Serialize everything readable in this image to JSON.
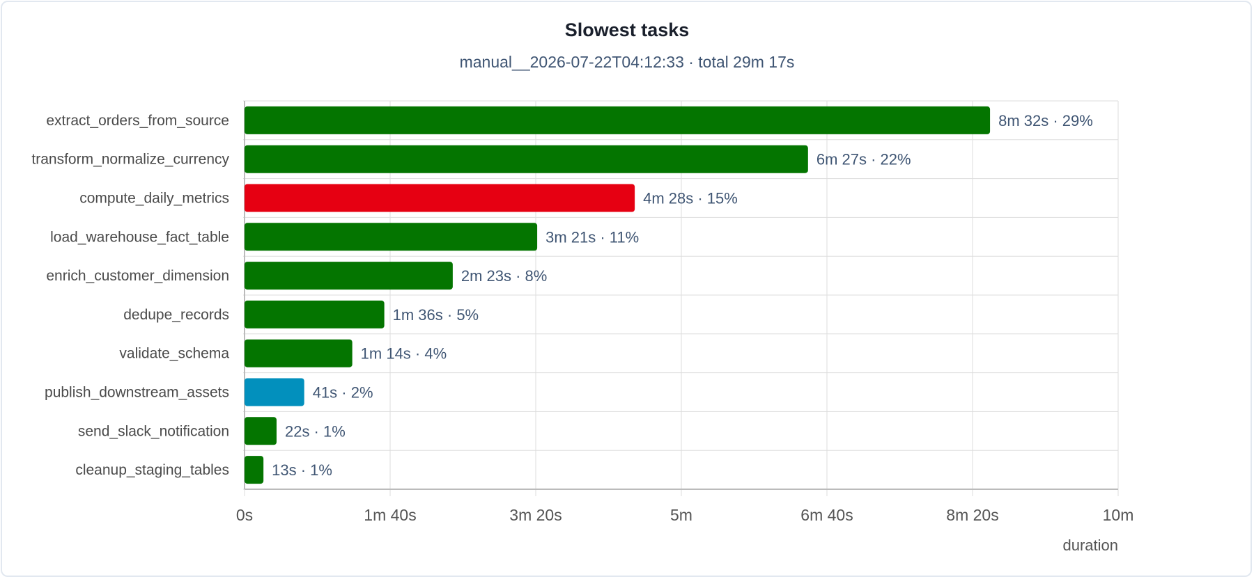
{
  "header": {
    "title": "Slowest tasks",
    "subtitle": "manual__2026-07-22T04:12:33 · total 29m 17s"
  },
  "colors": {
    "success": "#047500",
    "failed": "#e60012",
    "running": "#0290bd",
    "grid": "#dddddd",
    "axis": "#bbbbbb"
  },
  "chart_data": {
    "type": "bar",
    "orientation": "horizontal",
    "title": "Slowest tasks",
    "subtitle": "manual__2026-07-22T04:12:33 · total 29m 17s",
    "xlabel": "duration",
    "ylabel": "",
    "xlim": [
      0,
      600
    ],
    "x_unit": "seconds",
    "x_ticks": [
      {
        "value": 0,
        "label": "0s"
      },
      {
        "value": 100,
        "label": "1m 40s"
      },
      {
        "value": 200,
        "label": "3m 20s"
      },
      {
        "value": 300,
        "label": "5m"
      },
      {
        "value": 400,
        "label": "6m 40s"
      },
      {
        "value": 500,
        "label": "8m 20s"
      },
      {
        "value": 600,
        "label": "10m"
      }
    ],
    "grid": true,
    "legend": "none",
    "categories": [
      "extract_orders_from_source",
      "transform_normalize_currency",
      "compute_daily_metrics",
      "load_warehouse_fact_table",
      "enrich_customer_dimension",
      "dedupe_records",
      "validate_schema",
      "publish_downstream_assets",
      "send_slack_notification",
      "cleanup_staging_tables"
    ],
    "values": [
      512,
      387,
      268,
      201,
      143,
      96,
      74,
      41,
      22,
      13
    ],
    "labels": [
      "8m 32s · 29%",
      "6m 27s · 22%",
      "4m 28s · 15%",
      "3m 21s · 11%",
      "2m 23s · 8%",
      "1m 36s · 5%",
      "1m 14s · 4%",
      "41s · 2%",
      "22s · 1%",
      "13s · 1%"
    ],
    "bar_colors": [
      "#047500",
      "#047500",
      "#e60012",
      "#047500",
      "#047500",
      "#047500",
      "#047500",
      "#0290bd",
      "#047500",
      "#047500"
    ]
  }
}
